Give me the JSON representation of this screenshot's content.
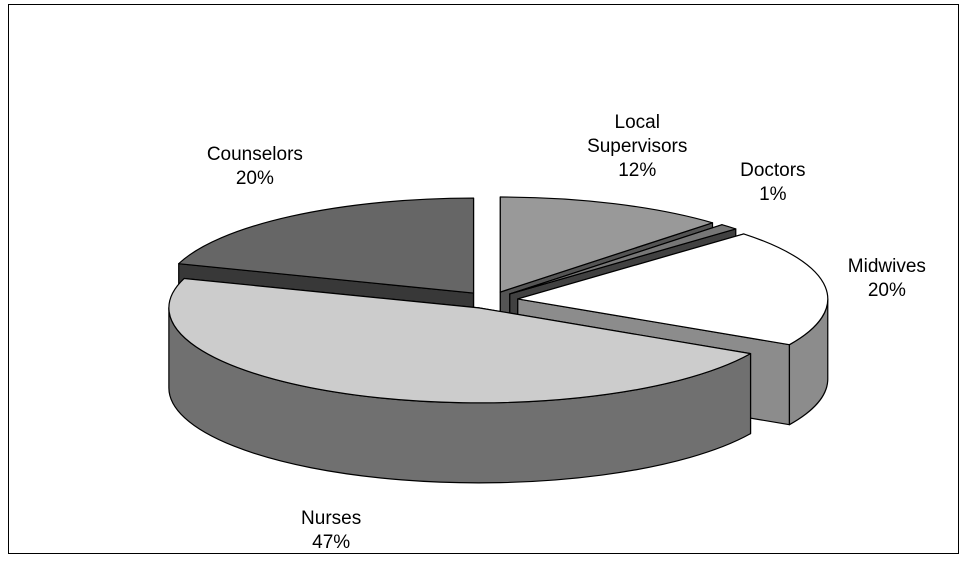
{
  "chart_data": {
    "type": "pie3d",
    "categories": [
      "Local Supervisors",
      "Doctors",
      "Midwives",
      "Nurses",
      "Counselors"
    ],
    "values": [
      12,
      1,
      20,
      47,
      20
    ],
    "value_labels": [
      "12%",
      "1%",
      "20%",
      "47%",
      "20%"
    ],
    "colors": [
      "#999999",
      "#777777",
      "#ffffff",
      "#cccccc",
      "#666666"
    ]
  }
}
